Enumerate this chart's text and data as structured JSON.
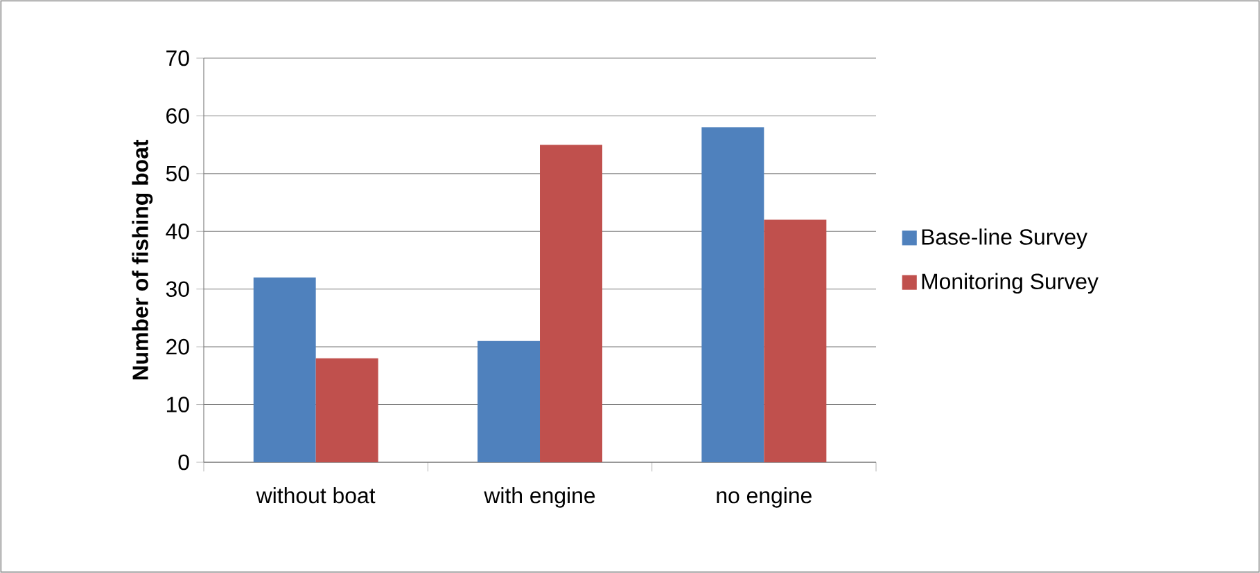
{
  "chart_data": {
    "type": "bar",
    "ylabel": "Number of fishing boat",
    "categories": [
      "without boat",
      "with engine",
      "no engine"
    ],
    "series": [
      {
        "name": "Base-line Survey",
        "color": "#4f81bd",
        "values": [
          32,
          21,
          58
        ]
      },
      {
        "name": "Monitoring Survey",
        "color": "#c0504d",
        "values": [
          18,
          55,
          42
        ]
      }
    ],
    "ylim": [
      0,
      70
    ],
    "yticks": [
      0,
      10,
      20,
      30,
      40,
      50,
      60,
      70
    ],
    "grid": "y",
    "legend": "right"
  }
}
